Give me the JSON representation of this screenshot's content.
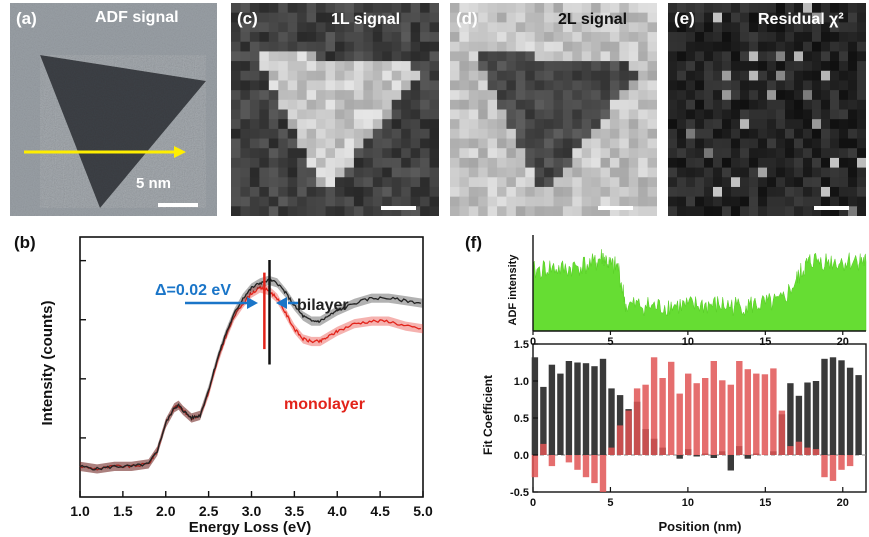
{
  "panels": {
    "a": {
      "label": "(a)",
      "title": "ADF signal",
      "scalebar": "5 nm"
    },
    "c": {
      "label": "(c)",
      "title": "1L signal"
    },
    "d": {
      "label": "(d)",
      "title": "2L signal"
    },
    "e": {
      "label": "(e)",
      "title": "Residual χ²"
    }
  },
  "chart_data": [
    {
      "type": "line",
      "panel_label": "(b)",
      "xlabel": "Energy Loss (eV)",
      "ylabel": "Intensity (counts)",
      "xlim": [
        1.0,
        5.0
      ],
      "ylim": [
        0,
        1.02
      ],
      "xticks": [
        "1.0",
        "1.5",
        "2.0",
        "2.5",
        "3.0",
        "3.5",
        "4.0",
        "4.5",
        "5.0"
      ],
      "annotation": "Δ=0.02 eV",
      "series": [
        {
          "name": "bilayer",
          "color": "#222222",
          "x": [
            1.0,
            1.2,
            1.4,
            1.6,
            1.8,
            1.9,
            2.0,
            2.1,
            2.15,
            2.2,
            2.3,
            2.4,
            2.5,
            2.6,
            2.7,
            2.8,
            2.9,
            3.0,
            3.1,
            3.2,
            3.3,
            3.4,
            3.5,
            3.6,
            3.7,
            3.8,
            3.9,
            4.0,
            4.2,
            4.4,
            4.6,
            4.8,
            5.0
          ],
          "y": [
            0.12,
            0.11,
            0.12,
            0.12,
            0.13,
            0.18,
            0.29,
            0.35,
            0.36,
            0.34,
            0.31,
            0.32,
            0.42,
            0.54,
            0.64,
            0.72,
            0.78,
            0.82,
            0.84,
            0.85,
            0.84,
            0.8,
            0.75,
            0.71,
            0.69,
            0.69,
            0.71,
            0.73,
            0.76,
            0.78,
            0.78,
            0.77,
            0.76
          ]
        },
        {
          "name": "monolayer",
          "color": "#e2231a",
          "x": [
            1.0,
            1.2,
            1.4,
            1.6,
            1.8,
            1.9,
            2.0,
            2.1,
            2.15,
            2.2,
            2.3,
            2.4,
            2.5,
            2.6,
            2.7,
            2.8,
            2.9,
            3.0,
            3.1,
            3.2,
            3.3,
            3.4,
            3.5,
            3.6,
            3.7,
            3.8,
            3.9,
            4.0,
            4.2,
            4.4,
            4.6,
            4.8,
            5.0
          ],
          "y": [
            0.12,
            0.11,
            0.12,
            0.12,
            0.13,
            0.18,
            0.29,
            0.35,
            0.36,
            0.34,
            0.31,
            0.32,
            0.41,
            0.53,
            0.63,
            0.71,
            0.76,
            0.8,
            0.82,
            0.81,
            0.78,
            0.72,
            0.66,
            0.62,
            0.61,
            0.61,
            0.63,
            0.65,
            0.68,
            0.69,
            0.69,
            0.67,
            0.66
          ]
        }
      ]
    },
    {
      "type": "area",
      "panel_label": "(f)",
      "ylabel": "ADF intensity",
      "xlim": [
        0,
        21.5
      ],
      "xticks": [
        "0",
        "5",
        "10",
        "15",
        "20"
      ],
      "color": "#66dd33",
      "x": [
        0,
        1,
        2,
        3,
        4,
        4.5,
        5,
        5.5,
        6,
        7,
        8,
        9,
        10,
        11,
        12,
        13,
        14,
        15,
        16,
        17,
        17.5,
        18,
        19,
        20,
        21,
        21.5
      ],
      "values": [
        0.62,
        0.66,
        0.64,
        0.68,
        0.7,
        0.78,
        0.68,
        0.66,
        0.26,
        0.27,
        0.25,
        0.27,
        0.26,
        0.27,
        0.27,
        0.26,
        0.27,
        0.28,
        0.3,
        0.52,
        0.66,
        0.74,
        0.73,
        0.72,
        0.74,
        0.72
      ]
    },
    {
      "type": "bar",
      "ylabel": "Fit Coefficient",
      "xlabel": "Position (nm)",
      "xlim": [
        0,
        21.5
      ],
      "ylim": [
        -0.5,
        1.5
      ],
      "xticks": [
        "0",
        "5",
        "10",
        "15",
        "20"
      ],
      "yticks": [
        "-0.5",
        "0.0",
        "0.5",
        "1.0",
        "1.5"
      ],
      "x": [
        0,
        0.55,
        1.1,
        1.65,
        2.2,
        2.75,
        3.3,
        3.85,
        4.4,
        4.95,
        5.5,
        6.05,
        6.6,
        7.15,
        7.7,
        8.25,
        8.8,
        9.35,
        9.9,
        10.45,
        11.0,
        11.55,
        12.1,
        12.65,
        13.2,
        13.75,
        14.3,
        14.85,
        15.4,
        15.95,
        16.5,
        17.05,
        17.6,
        18.15,
        18.7,
        19.25,
        19.8,
        20.35,
        20.9
      ],
      "series": [
        {
          "name": "",
          "color": "#3a3a3a",
          "values": [
            1.32,
            0.92,
            1.22,
            1.1,
            1.27,
            1.25,
            1.24,
            1.2,
            1.3,
            0.9,
            0.81,
            0.62,
            0.72,
            0.35,
            0.22,
            0.1,
            0.0,
            -0.05,
            0.08,
            -0.02,
            0.02,
            -0.04,
            0.05,
            -0.21,
            0.12,
            -0.05,
            0.02,
            0.0,
            0.05,
            0.55,
            0.97,
            0.8,
            0.98,
            1.0,
            1.3,
            1.32,
            1.28,
            1.18,
            1.08
          ]
        },
        {
          "name": "",
          "color": "#e05555",
          "values": [
            -0.3,
            0.15,
            -0.15,
            0.0,
            -0.1,
            -0.2,
            -0.3,
            -0.38,
            -0.5,
            0.1,
            0.4,
            0.6,
            0.9,
            0.95,
            1.32,
            1.04,
            1.26,
            0.83,
            1.1,
            0.97,
            1.04,
            1.27,
            1.01,
            0.95,
            1.27,
            1.16,
            1.1,
            1.09,
            1.17,
            0.6,
            0.12,
            0.18,
            0.1,
            0.08,
            -0.3,
            -0.35,
            -0.2,
            -0.15,
            0.0
          ]
        }
      ]
    }
  ]
}
